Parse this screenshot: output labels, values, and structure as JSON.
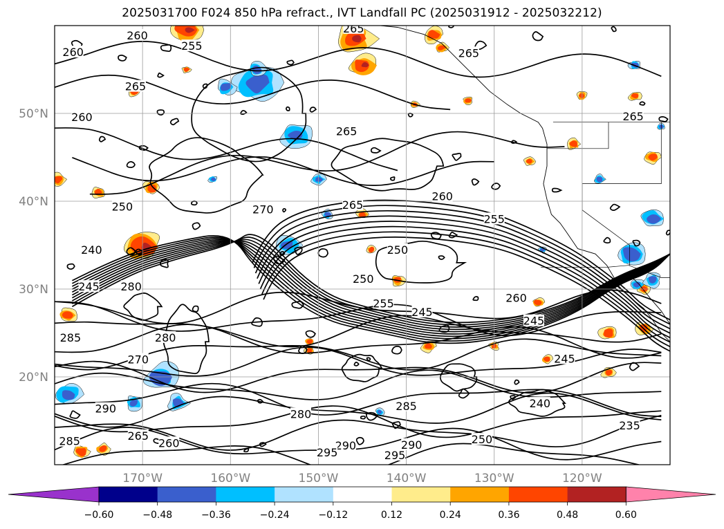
{
  "title": "2025031700 F024 850 hPa refract., IVT Landfall PC (2025031912 - 2025032212)",
  "map": {
    "lat_ticks": [
      {
        "value": 50,
        "label": "50°N"
      },
      {
        "value": 40,
        "label": "40°N"
      },
      {
        "value": 30,
        "label": "30°N"
      },
      {
        "value": 20,
        "label": "20°N"
      }
    ],
    "lon_ticks": [
      {
        "value": -170,
        "label": "170°W"
      },
      {
        "value": -160,
        "label": "160°W"
      },
      {
        "value": -150,
        "label": "150°W"
      },
      {
        "value": -140,
        "label": "140°W"
      },
      {
        "value": -130,
        "label": "130°W"
      },
      {
        "value": -120,
        "label": "120°W"
      }
    ],
    "extent": {
      "lon_min": -180,
      "lon_max": -110,
      "lat_min": 10,
      "lat_max": 60
    },
    "gridlines": true,
    "contour_labels": [
      {
        "text": "260",
        "lon": -177.9,
        "lat": 57.0
      },
      {
        "text": "255",
        "lon": -164.4,
        "lat": 57.7
      },
      {
        "text": "265",
        "lon": -146.0,
        "lat": 59.7
      },
      {
        "text": "265",
        "lon": -132.9,
        "lat": 56.9
      },
      {
        "text": "260",
        "lon": -170.6,
        "lat": 58.9
      },
      {
        "text": "265",
        "lon": -170.8,
        "lat": 53.1
      },
      {
        "text": "260",
        "lon": -176.9,
        "lat": 49.6
      },
      {
        "text": "265",
        "lon": -146.8,
        "lat": 48.0
      },
      {
        "text": "265",
        "lon": -114.2,
        "lat": 49.7
      },
      {
        "text": "260",
        "lon": -135.9,
        "lat": 40.6
      },
      {
        "text": "265",
        "lon": -146.1,
        "lat": 39.6
      },
      {
        "text": "270",
        "lon": -156.3,
        "lat": 39.1
      },
      {
        "text": "250",
        "lon": -172.3,
        "lat": 39.4
      },
      {
        "text": "255",
        "lon": -130.0,
        "lat": 38.0
      },
      {
        "text": "240",
        "lon": -175.8,
        "lat": 34.5
      },
      {
        "text": "250",
        "lon": -141.0,
        "lat": 34.5
      },
      {
        "text": "250",
        "lon": -144.9,
        "lat": 31.2
      },
      {
        "text": "255",
        "lon": -142.6,
        "lat": 28.4
      },
      {
        "text": "245",
        "lon": -138.2,
        "lat": 27.4
      },
      {
        "text": "260",
        "lon": -127.5,
        "lat": 29.0
      },
      {
        "text": "245",
        "lon": -176.1,
        "lat": 30.3
      },
      {
        "text": "280",
        "lon": -171.3,
        "lat": 30.3
      },
      {
        "text": "245",
        "lon": -125.5,
        "lat": 26.4
      },
      {
        "text": "245",
        "lon": -122.0,
        "lat": 22.1
      },
      {
        "text": "240",
        "lon": -124.8,
        "lat": 17.0
      },
      {
        "text": "235",
        "lon": -114.6,
        "lat": 14.5
      },
      {
        "text": "285",
        "lon": -178.2,
        "lat": 24.5
      },
      {
        "text": "280",
        "lon": -167.4,
        "lat": 24.5
      },
      {
        "text": "270",
        "lon": -170.5,
        "lat": 22.0
      },
      {
        "text": "290",
        "lon": -174.2,
        "lat": 16.4
      },
      {
        "text": "285",
        "lon": -140.0,
        "lat": 16.7
      },
      {
        "text": "280",
        "lon": -152.0,
        "lat": 15.8
      },
      {
        "text": "290",
        "lon": -146.9,
        "lat": 12.2
      },
      {
        "text": "295",
        "lon": -149.0,
        "lat": 11.4
      },
      {
        "text": "290",
        "lon": -139.4,
        "lat": 12.3
      },
      {
        "text": "295",
        "lon": -141.3,
        "lat": 11.1
      },
      {
        "text": "250",
        "lon": -131.4,
        "lat": 12.9
      },
      {
        "text": "265",
        "lon": -170.5,
        "lat": 13.3
      },
      {
        "text": "260",
        "lon": -167.0,
        "lat": 12.5
      },
      {
        "text": "285",
        "lon": -178.3,
        "lat": 12.7
      }
    ]
  },
  "colorbar": {
    "colors": [
      "#9932cc",
      "#00008b",
      "#3a5fcd",
      "#00bfff",
      "#b0e2ff",
      "#ffffff",
      "#ffec8b",
      "#ffa500",
      "#ff4500",
      "#b22222",
      "#ff82ab"
    ],
    "tick_labels": [
      "−0.60",
      "−0.48",
      "−0.36",
      "−0.24",
      "−0.12",
      "0.12",
      "0.24",
      "0.36",
      "0.48",
      "0.60"
    ],
    "extend": "both"
  }
}
